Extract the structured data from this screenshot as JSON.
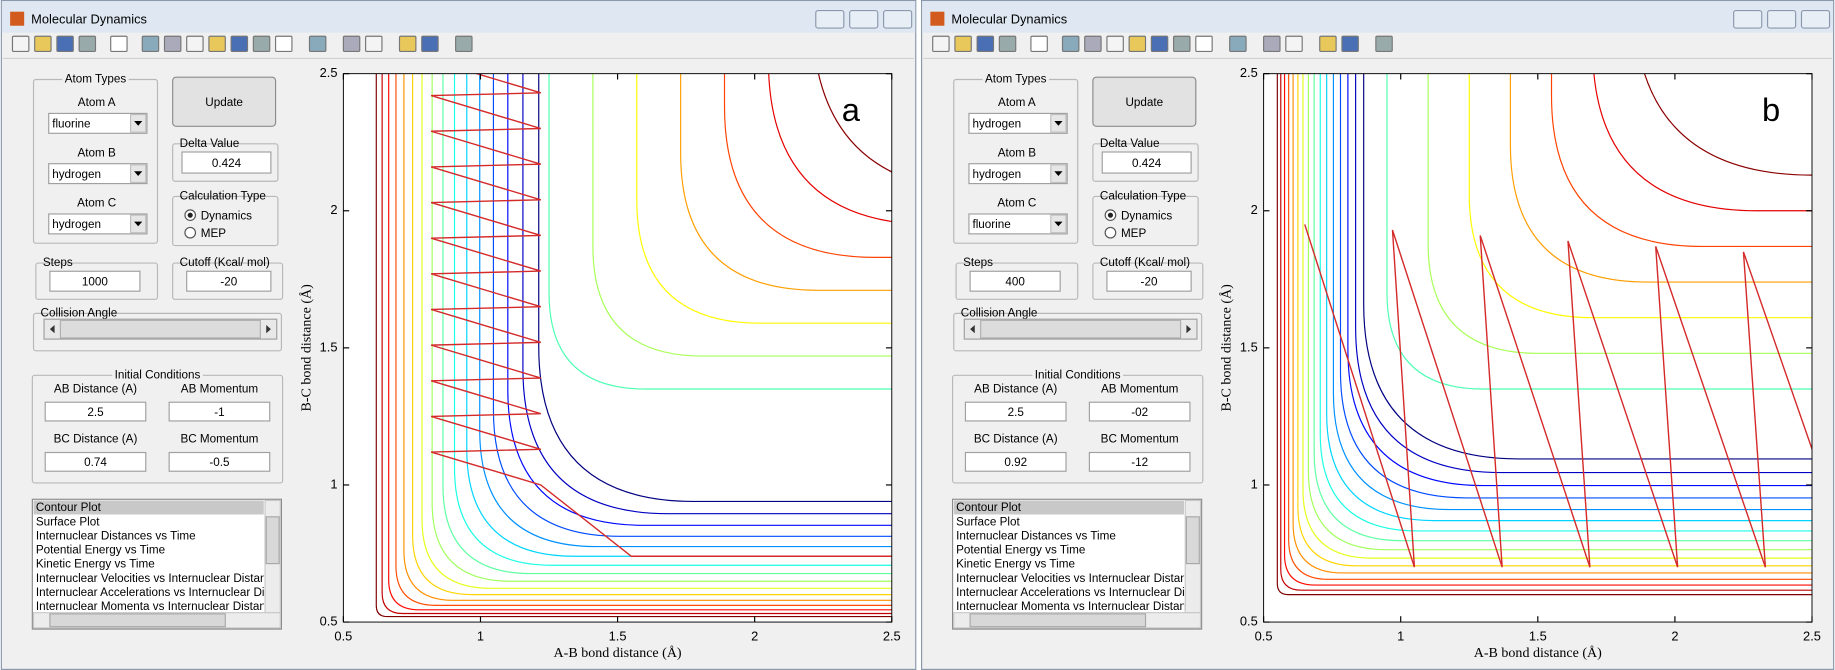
{
  "windows": [
    {
      "title": "Molecular Dynamics",
      "update_button": "Update",
      "atom_types": {
        "title": "Atom Types",
        "fields": [
          {
            "label": "Atom A",
            "value": "fluorine"
          },
          {
            "label": "Atom B",
            "value": "hydrogen"
          },
          {
            "label": "Atom C",
            "value": "hydrogen"
          }
        ]
      },
      "delta": {
        "label": "Delta Value",
        "value": "0.424"
      },
      "calc_type": {
        "title": "Calculation Type",
        "options": [
          "Dynamics",
          "MEP"
        ]
      },
      "steps": {
        "label": "Steps",
        "value": "1000"
      },
      "cutoff": {
        "label": "Cutoff (Kcal/ mol)",
        "value": "-20"
      },
      "collision_angle": "Collision Angle",
      "initial": {
        "title": "Initial Conditions",
        "fields": [
          {
            "label": "AB Distance (A)",
            "value": "2.5"
          },
          {
            "label": "AB Momentum",
            "value": "-1"
          },
          {
            "label": "BC Distance (A)",
            "value": "0.74"
          },
          {
            "label": "BC Momentum",
            "value": "-0.5"
          }
        ]
      },
      "plot_list": [
        "Contour Plot",
        "Surface Plot",
        "Internuclear Distances vs Time",
        "Potential Energy vs Time",
        "Kinetic Energy vs Time",
        "Internuclear Velocities vs Internuclear Distance",
        "Internuclear Accelerations vs Internuclear Dista",
        "Internuclear Momenta vs Internuclear Distance"
      ],
      "plot": {
        "letter": "a",
        "xlabel": "A-B bond distance (Å)",
        "ylabel": "B-C bond distance (Å)",
        "xlim": [
          0.5,
          2.5
        ],
        "ylim": [
          0.5,
          2.5
        ],
        "xticks": [
          0.5,
          1,
          1.5,
          2,
          2.5
        ],
        "yticks": [
          0.5,
          1,
          1.5,
          2,
          2.5
        ]
      }
    },
    {
      "title": "Molecular Dynamics",
      "update_button": "Update",
      "atom_types": {
        "title": "Atom Types",
        "fields": [
          {
            "label": "Atom A",
            "value": "hydrogen"
          },
          {
            "label": "Atom B",
            "value": "hydrogen"
          },
          {
            "label": "Atom C",
            "value": "fluorine"
          }
        ]
      },
      "delta": {
        "label": "Delta Value",
        "value": "0.424"
      },
      "calc_type": {
        "title": "Calculation Type",
        "options": [
          "Dynamics",
          "MEP"
        ]
      },
      "steps": {
        "label": "Steps",
        "value": "400"
      },
      "cutoff": {
        "label": "Cutoff (Kcal/ mol)",
        "value": "-20"
      },
      "collision_angle": "Collision Angle",
      "initial": {
        "title": "Initial Conditions",
        "fields": [
          {
            "label": "AB Distance (A)",
            "value": "2.5"
          },
          {
            "label": "AB Momentum",
            "value": "-02"
          },
          {
            "label": "BC Distance (A)",
            "value": "0.92"
          },
          {
            "label": "BC Momentum",
            "value": "-12"
          }
        ]
      },
      "plot_list": [
        "Contour Plot",
        "Surface Plot",
        "Internuclear Distances vs Time",
        "Potential Energy vs Time",
        "Kinetic Energy vs Time",
        "Internuclear Velocities vs Internuclear Distance",
        "Internuclear Accelerations vs Internuclear Dista",
        "Internuclear Momenta vs Internuclear Distance"
      ],
      "plot": {
        "letter": "b",
        "xlabel": "A-B bond distance (Å)",
        "ylabel": "B-C bond distance (Å)",
        "xlim": [
          0.5,
          2.5
        ],
        "ylim": [
          0.5,
          2.5
        ],
        "xticks": [
          0.5,
          1,
          1.5,
          2,
          2.5
        ],
        "yticks": [
          0.5,
          1,
          1.5,
          2,
          2.5
        ]
      }
    }
  ]
}
